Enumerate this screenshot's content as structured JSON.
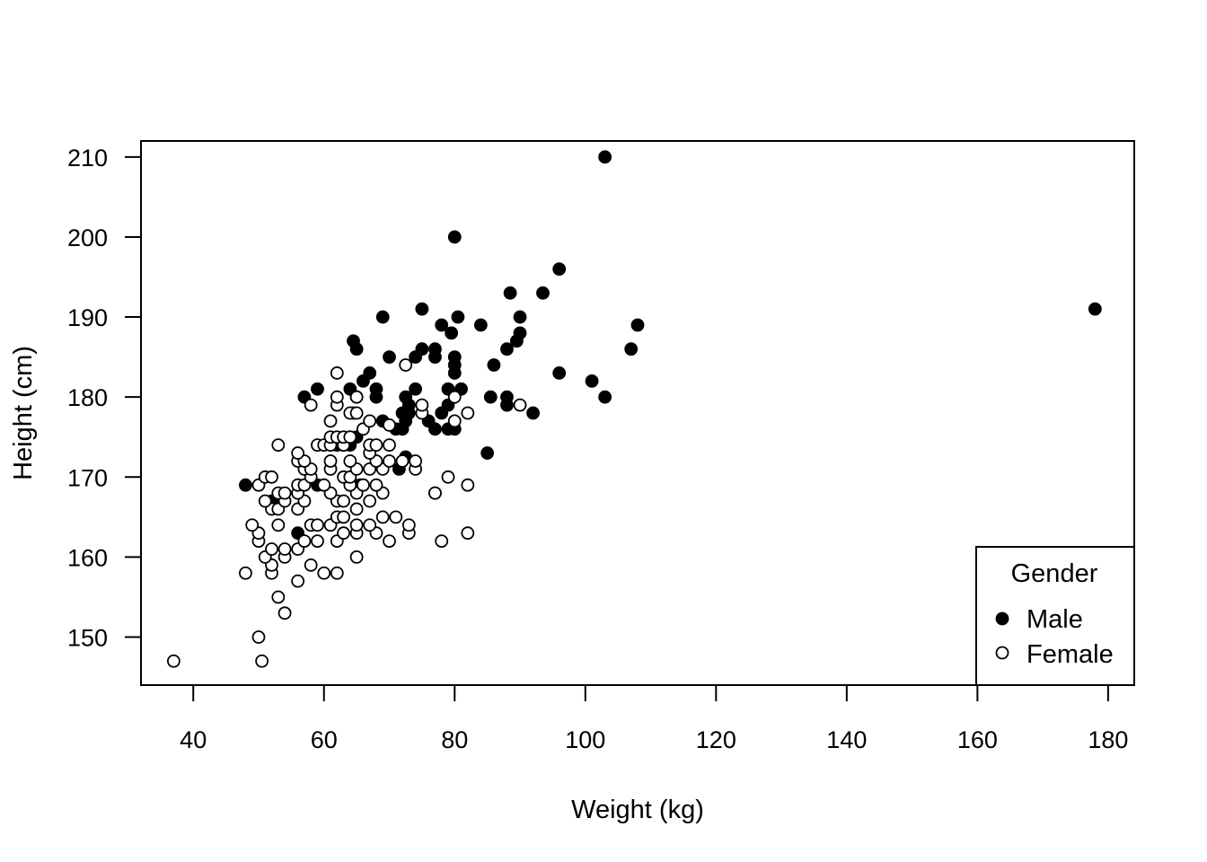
{
  "chart_data": {
    "type": "scatter",
    "title": "",
    "xlabel": "Weight (kg)",
    "ylabel": "Height (cm)",
    "xlim": [
      32,
      184
    ],
    "ylim": [
      144,
      212
    ],
    "x_ticks": [
      "40",
      "60",
      "80",
      "100",
      "120",
      "140",
      "160",
      "180"
    ],
    "y_ticks": [
      "150",
      "160",
      "170",
      "180",
      "190",
      "200",
      "210"
    ],
    "grid": false,
    "legend": {
      "title": "Gender",
      "position": "bottom-right",
      "entries": [
        "Male",
        "Female"
      ]
    },
    "series": [
      {
        "name": "Male",
        "marker": "filled-circle",
        "color": "#000000",
        "points": [
          [
            103,
            210
          ],
          [
            80,
            200
          ],
          [
            178,
            191
          ],
          [
            96,
            196
          ],
          [
            88.5,
            193
          ],
          [
            93.5,
            193
          ],
          [
            69,
            190
          ],
          [
            75,
            191
          ],
          [
            80.5,
            190
          ],
          [
            90,
            190
          ],
          [
            78,
            189
          ],
          [
            79.5,
            188
          ],
          [
            84,
            189
          ],
          [
            90,
            188
          ],
          [
            108,
            189
          ],
          [
            89.5,
            187
          ],
          [
            64.5,
            187
          ],
          [
            65,
            186
          ],
          [
            75,
            186
          ],
          [
            77,
            186
          ],
          [
            88,
            186
          ],
          [
            107,
            186
          ],
          [
            70,
            185
          ],
          [
            74,
            185
          ],
          [
            77,
            185
          ],
          [
            80,
            185
          ],
          [
            67,
            183
          ],
          [
            80,
            183
          ],
          [
            80,
            184
          ],
          [
            86,
            184
          ],
          [
            96,
            183
          ],
          [
            66,
            182
          ],
          [
            101,
            182
          ],
          [
            59,
            181
          ],
          [
            64,
            181
          ],
          [
            68,
            181
          ],
          [
            74,
            181
          ],
          [
            79,
            181
          ],
          [
            81,
            181
          ],
          [
            57,
            180
          ],
          [
            65,
            180
          ],
          [
            68,
            180
          ],
          [
            72.5,
            180
          ],
          [
            85.5,
            180
          ],
          [
            88,
            180
          ],
          [
            103,
            180
          ],
          [
            73,
            179
          ],
          [
            79,
            179
          ],
          [
            88,
            179
          ],
          [
            64.5,
            178
          ],
          [
            72,
            178
          ],
          [
            73,
            178
          ],
          [
            78,
            178
          ],
          [
            92,
            178
          ],
          [
            69,
            177
          ],
          [
            72.5,
            177
          ],
          [
            76,
            177
          ],
          [
            71,
            176
          ],
          [
            72,
            176
          ],
          [
            77,
            176
          ],
          [
            79,
            176
          ],
          [
            80,
            176
          ],
          [
            64,
            175
          ],
          [
            65,
            175
          ],
          [
            62,
            174
          ],
          [
            63,
            174
          ],
          [
            64,
            174
          ],
          [
            85,
            173
          ],
          [
            72.5,
            172.5
          ],
          [
            71.5,
            171
          ],
          [
            59,
            169
          ],
          [
            65.5,
            169
          ],
          [
            48,
            169
          ],
          [
            77,
            168
          ],
          [
            52,
            167
          ],
          [
            56,
            163
          ]
        ]
      },
      {
        "name": "Female",
        "marker": "open-circle",
        "color": "#000000",
        "points": [
          [
            37,
            147
          ],
          [
            50.5,
            147
          ],
          [
            50,
            150
          ],
          [
            54,
            153
          ],
          [
            53,
            155
          ],
          [
            56,
            157
          ],
          [
            48,
            158
          ],
          [
            52,
            158
          ],
          [
            60,
            158
          ],
          [
            62,
            158
          ],
          [
            58,
            159
          ],
          [
            52,
            159
          ],
          [
            51,
            160
          ],
          [
            54,
            160
          ],
          [
            65,
            160
          ],
          [
            52,
            161
          ],
          [
            54,
            161
          ],
          [
            56,
            161
          ],
          [
            50,
            162
          ],
          [
            57,
            162
          ],
          [
            59,
            162
          ],
          [
            62,
            162
          ],
          [
            70,
            162
          ],
          [
            78,
            162
          ],
          [
            50,
            163
          ],
          [
            63,
            163
          ],
          [
            65,
            163
          ],
          [
            68,
            163
          ],
          [
            73,
            163
          ],
          [
            82,
            163
          ],
          [
            49,
            164
          ],
          [
            53,
            164
          ],
          [
            58,
            164
          ],
          [
            59,
            164
          ],
          [
            61,
            164
          ],
          [
            65,
            164
          ],
          [
            67,
            164
          ],
          [
            73,
            164
          ],
          [
            62,
            165
          ],
          [
            63,
            165
          ],
          [
            69,
            165
          ],
          [
            71,
            165
          ],
          [
            52,
            166
          ],
          [
            53,
            166
          ],
          [
            56,
            166
          ],
          [
            65,
            166
          ],
          [
            51,
            167
          ],
          [
            54,
            167
          ],
          [
            57,
            167
          ],
          [
            62,
            167
          ],
          [
            63,
            167
          ],
          [
            67,
            167
          ],
          [
            53,
            168
          ],
          [
            54,
            168
          ],
          [
            56,
            168
          ],
          [
            61,
            168
          ],
          [
            65,
            168
          ],
          [
            69,
            168
          ],
          [
            77,
            168
          ],
          [
            50,
            169
          ],
          [
            56,
            169
          ],
          [
            57,
            169
          ],
          [
            60,
            169
          ],
          [
            64,
            169
          ],
          [
            66,
            169
          ],
          [
            68,
            169
          ],
          [
            82,
            169
          ],
          [
            51,
            170
          ],
          [
            52,
            170
          ],
          [
            58,
            170
          ],
          [
            63,
            170
          ],
          [
            64,
            170
          ],
          [
            79,
            170
          ],
          [
            57,
            171
          ],
          [
            58,
            171
          ],
          [
            61,
            171
          ],
          [
            65,
            171
          ],
          [
            67,
            171
          ],
          [
            69,
            171
          ],
          [
            74,
            171
          ],
          [
            56,
            172
          ],
          [
            57,
            172
          ],
          [
            61,
            172
          ],
          [
            64,
            172
          ],
          [
            68,
            172
          ],
          [
            70,
            172
          ],
          [
            72,
            172
          ],
          [
            74,
            172
          ],
          [
            56,
            173
          ],
          [
            67,
            173
          ],
          [
            53,
            174
          ],
          [
            59,
            174
          ],
          [
            60,
            174
          ],
          [
            61,
            174
          ],
          [
            63,
            174
          ],
          [
            67,
            174
          ],
          [
            68,
            174
          ],
          [
            70,
            174
          ],
          [
            61,
            175
          ],
          [
            62,
            175
          ],
          [
            63,
            175
          ],
          [
            64,
            175
          ],
          [
            66,
            176
          ],
          [
            70,
            176.5
          ],
          [
            61,
            177
          ],
          [
            67,
            177
          ],
          [
            80,
            177
          ],
          [
            64,
            178
          ],
          [
            65,
            178
          ],
          [
            75,
            178
          ],
          [
            82,
            178
          ],
          [
            58,
            179
          ],
          [
            62,
            179
          ],
          [
            75,
            179
          ],
          [
            90,
            179
          ],
          [
            62,
            180
          ],
          [
            65,
            180
          ],
          [
            80,
            180
          ],
          [
            62,
            183
          ],
          [
            72.5,
            184
          ]
        ]
      }
    ]
  }
}
